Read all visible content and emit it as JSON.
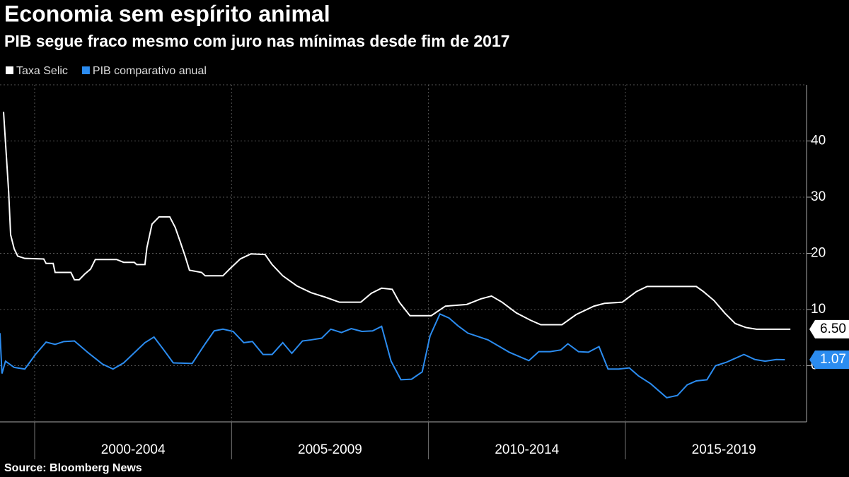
{
  "chart_data": {
    "type": "line",
    "title": "Economia sem espírito animal",
    "subtitle": "PIB segue fraco mesmo com juro nas mínimas desde fim de 2017",
    "source": "Source: Bloomberg News",
    "xlim": [
      1999.12,
      2019.6
    ],
    "ylim": [
      -10,
      50
    ],
    "yticks": [
      0,
      10,
      20,
      30,
      40
    ],
    "xticks": [
      {
        "value": 2002.5,
        "label": "2000-2004"
      },
      {
        "value": 2007.5,
        "label": "2005-2009"
      },
      {
        "value": 2012.5,
        "label": "2010-2014"
      },
      {
        "value": 2017.5,
        "label": "2015-2019"
      }
    ],
    "x_separators": [
      2000,
      2005,
      2010,
      2015
    ],
    "grid": true,
    "legend": "top-left",
    "series": [
      {
        "name": "Taxa Selic",
        "color": "#ffffff",
        "x": [
          1999.21,
          1999.26,
          1999.34,
          1999.39,
          1999.48,
          1999.57,
          1999.75,
          2000.23,
          2000.29,
          2000.47,
          2000.52,
          2000.92,
          2001.01,
          2001.13,
          2001.27,
          2001.42,
          2001.54,
          2002.08,
          2002.26,
          2002.53,
          2002.59,
          2002.8,
          2002.85,
          2002.98,
          2003.16,
          2003.43,
          2003.57,
          2003.7,
          2003.82,
          2003.93,
          2004.24,
          2004.33,
          2004.78,
          2004.95,
          2005.22,
          2005.49,
          2005.85,
          2006.03,
          2006.3,
          2006.66,
          2007.02,
          2007.38,
          2007.74,
          2008.28,
          2008.55,
          2008.81,
          2009.08,
          2009.26,
          2009.53,
          2010.07,
          2010.43,
          2010.97,
          2011.33,
          2011.6,
          2011.87,
          2012.23,
          2012.59,
          2012.85,
          2013.39,
          2013.75,
          2014.2,
          2014.47,
          2014.92,
          2015.28,
          2015.55,
          2016.8,
          2016.98,
          2017.25,
          2017.52,
          2017.79,
          2018.06,
          2018.33,
          2019.19
        ],
        "values": [
          45.2,
          39.7,
          30.9,
          23.3,
          20.8,
          19.5,
          19.1,
          19,
          18.2,
          18.2,
          16.6,
          16.6,
          15.3,
          15.3,
          16.3,
          17.2,
          18.9,
          18.9,
          18.4,
          18.4,
          18,
          18,
          21,
          25.2,
          26.5,
          26.5,
          24.6,
          22,
          19.5,
          17,
          16.6,
          16,
          16,
          17.2,
          19,
          19.9,
          19.8,
          18,
          16,
          14.2,
          13,
          12.2,
          11.3,
          11.3,
          12.9,
          13.8,
          13.6,
          11.3,
          8.9,
          8.9,
          10.6,
          10.9,
          11.9,
          12.4,
          11.3,
          9.4,
          8.1,
          7.3,
          7.3,
          9.1,
          10.6,
          11.1,
          11.3,
          13.2,
          14.1,
          14.1,
          13.2,
          11.6,
          9.4,
          7.5,
          6.8,
          6.5,
          6.5
        ],
        "value_labels": [
          null,
          null,
          null,
          null,
          null,
          null,
          null,
          null,
          null,
          null,
          null,
          null,
          null,
          null,
          null,
          null,
          null,
          null,
          null,
          null,
          null,
          null,
          null,
          null,
          null,
          null,
          null,
          null,
          null,
          null,
          null,
          null,
          null,
          null,
          null,
          null,
          null,
          null,
          null,
          null,
          null,
          null,
          null,
          null,
          null,
          null,
          null,
          null,
          null,
          null,
          null,
          null,
          null,
          null,
          null,
          null,
          null,
          null,
          null,
          null,
          null,
          null,
          null,
          null,
          null,
          null,
          null,
          null,
          null,
          null,
          null,
          null,
          "6.50"
        ]
      },
      {
        "name": "PIB comparativo anual",
        "color": "#2b8cf0",
        "x": [
          1999.12,
          1999.17,
          1999.26,
          1999.48,
          1999.75,
          2000.02,
          2000.29,
          2000.52,
          2000.74,
          2001.01,
          2001.36,
          2001.72,
          2001.99,
          2002.26,
          2002.8,
          2003.03,
          2003.29,
          2003.52,
          2004,
          2004.33,
          2004.56,
          2004.78,
          2005.04,
          2005.31,
          2005.53,
          2005.8,
          2006.03,
          2006.3,
          2006.53,
          2006.8,
          2007.02,
          2007.29,
          2007.52,
          2007.79,
          2008.04,
          2008.31,
          2008.58,
          2008.81,
          2009.05,
          2009.3,
          2009.57,
          2009.84,
          2010.04,
          2010.29,
          2010.52,
          2010.75,
          2011,
          2011.51,
          2012.05,
          2012.55,
          2012.8,
          2013.09,
          2013.36,
          2013.54,
          2013.81,
          2014.06,
          2014.33,
          2014.56,
          2014.83,
          2015.1,
          2015.33,
          2015.64,
          2016.05,
          2016.32,
          2016.57,
          2016.8,
          2017.07,
          2017.29,
          2017.56,
          2018.01,
          2018.29,
          2018.55,
          2018.83,
          2019.05
        ],
        "values": [
          5.8,
          -1.4,
          0.8,
          -0.3,
          -0.6,
          2.0,
          4.2,
          3.8,
          4.3,
          4.4,
          2.3,
          0.3,
          -0.6,
          0.5,
          4.1,
          5.1,
          2.7,
          0.5,
          0.4,
          3.9,
          6.2,
          6.5,
          6.1,
          4.1,
          4.3,
          2.0,
          2.0,
          4.1,
          2.2,
          4.4,
          4.6,
          4.9,
          6.5,
          5.9,
          6.6,
          6.1,
          6.2,
          7.0,
          0.8,
          -2.5,
          -2.4,
          -1.1,
          5.3,
          9.2,
          8.5,
          7.1,
          5.8,
          4.6,
          2.4,
          0.9,
          2.5,
          2.5,
          2.8,
          3.9,
          2.5,
          2.4,
          3.4,
          -0.6,
          -0.6,
          -0.4,
          -1.8,
          -3.2,
          -5.7,
          -5.3,
          -3.4,
          -2.7,
          -2.5,
          0,
          0.6,
          2.0,
          1.1,
          0.8,
          1.1,
          1.07
        ],
        "value_labels": [
          null,
          null,
          null,
          null,
          null,
          null,
          null,
          null,
          null,
          null,
          null,
          null,
          null,
          null,
          null,
          null,
          null,
          null,
          null,
          null,
          null,
          null,
          null,
          null,
          null,
          null,
          null,
          null,
          null,
          null,
          null,
          null,
          null,
          null,
          null,
          null,
          null,
          null,
          null,
          null,
          null,
          null,
          null,
          null,
          null,
          null,
          null,
          null,
          null,
          null,
          null,
          null,
          null,
          null,
          null,
          null,
          null,
          null,
          null,
          null,
          null,
          null,
          null,
          null,
          null,
          null,
          null,
          null,
          null,
          null,
          null,
          null,
          null,
          "1.07"
        ]
      }
    ]
  }
}
